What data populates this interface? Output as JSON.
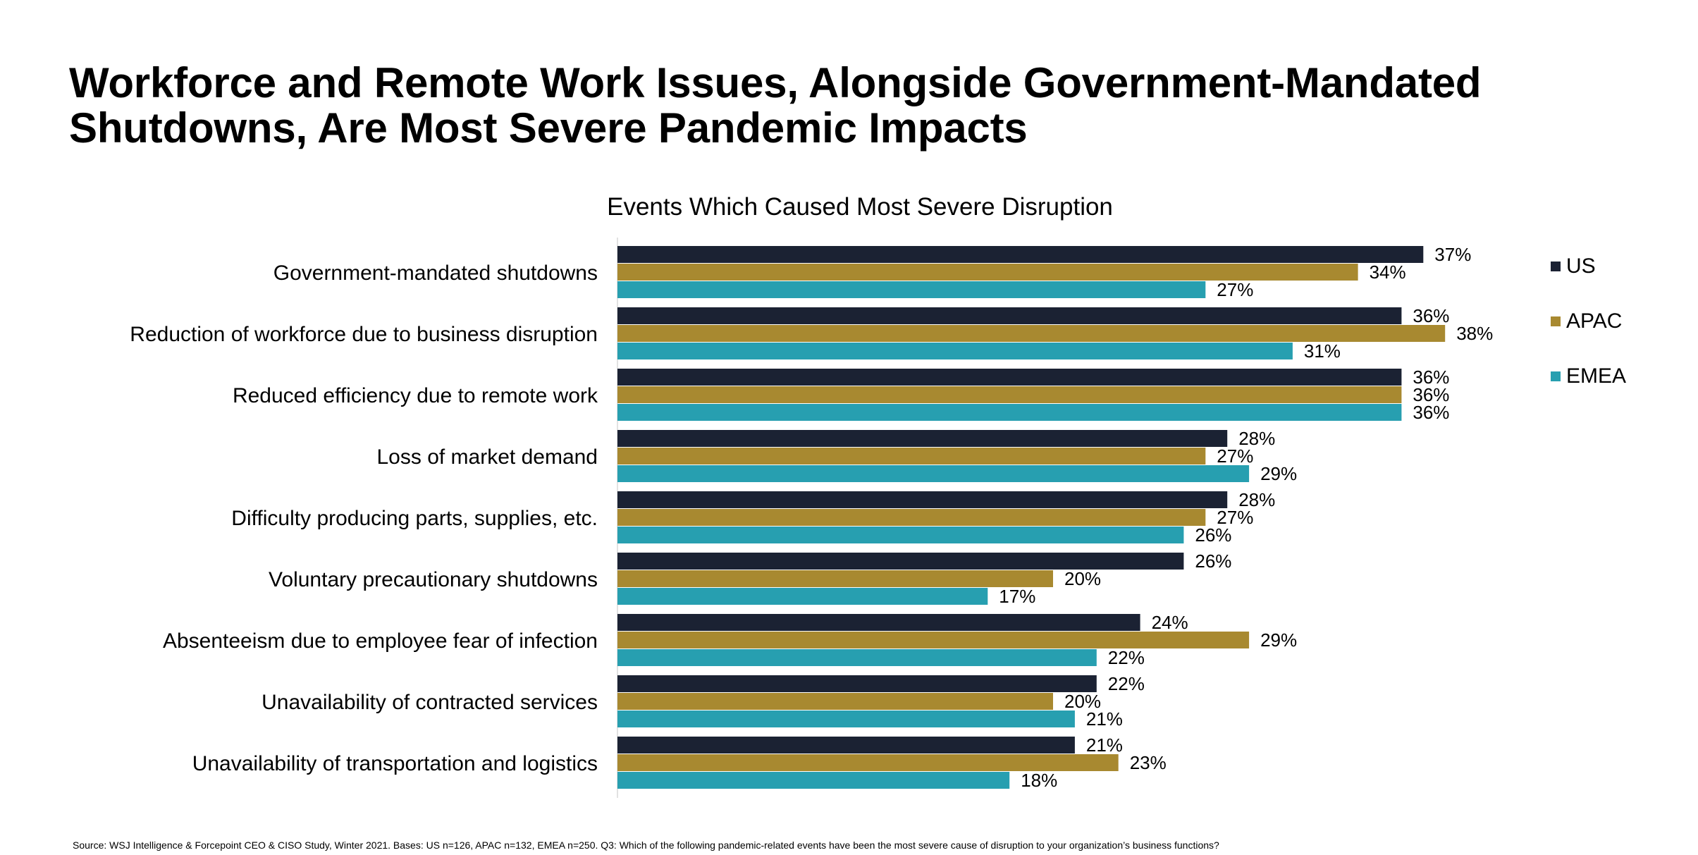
{
  "title": {
    "line1": "Workforce and Remote Work Issues, Alongside Government-Mandated",
    "line2": "Shutdowns, Are Most Severe Pandemic Impacts"
  },
  "footnote": "Source: WSJ Intelligence & Forcepoint CEO & CISO Study, Winter 2021. Bases: US n=126, APAC n=132, EMEA  n=250. Q3: Which of the following pandemic-related events have been the most severe cause of disruption to your organization’s business functions?",
  "chart_data": {
    "type": "bar",
    "orientation": "horizontal",
    "title": "Events Which Caused Most Severe Disruption",
    "xlabel": "",
    "ylabel": "",
    "xlim": [
      0,
      40
    ],
    "value_suffix": "%",
    "grid": false,
    "legend_position": "right",
    "categories": [
      "Government-mandated shutdowns",
      "Reduction of workforce due to business disruption",
      "Reduced efficiency due to remote work",
      "Loss of market demand",
      "Difficulty producing parts, supplies, etc.",
      "Voluntary precautionary shutdowns",
      "Absenteeism due to employee fear of infection",
      "Unavailability of contracted services",
      "Unavailability of transportation and logistics"
    ],
    "series": [
      {
        "name": "US",
        "color": "#1b2233",
        "values": [
          37,
          36,
          36,
          28,
          28,
          26,
          24,
          22,
          21
        ]
      },
      {
        "name": "APAC",
        "color": "#a88930",
        "values": [
          34,
          38,
          36,
          27,
          27,
          20,
          29,
          20,
          23
        ]
      },
      {
        "name": "EMEA",
        "color": "#279fb0",
        "values": [
          27,
          31,
          36,
          29,
          26,
          17,
          22,
          21,
          18
        ]
      }
    ]
  }
}
